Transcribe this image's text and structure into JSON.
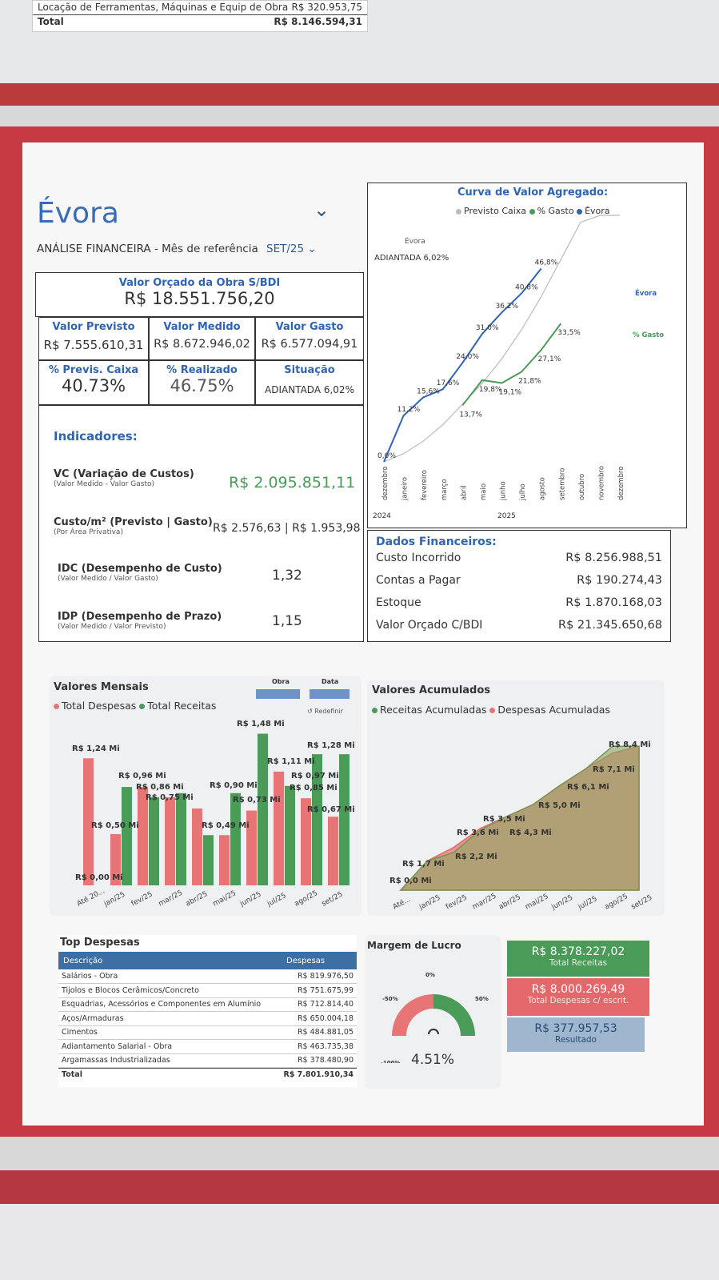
{
  "top": {
    "row1_label": "Locação de Ferramentas, Máquinas e Equip de Obra",
    "row1_value": "R$ 320.953,75",
    "total_label": "Total",
    "total_value": "R$ 8.146.594,31"
  },
  "header": {
    "title": "Évora",
    "subtitle": "ANÁLISE FINANCEIRA - Mês de referência",
    "month": "SET/25"
  },
  "budget": {
    "label": "Valor Orçado da Obra S/BDI",
    "value": "R$ 18.551.756,20"
  },
  "kpis": {
    "previsto_label": "Valor Previsto",
    "previsto": "R$ 7.555.610,31",
    "medido_label": "Valor Medido",
    "medido": "R$ 8.672.946,02",
    "gasto_label": "Valor Gasto",
    "gasto": "R$ 6.577.094,91",
    "caixa_label": "% Previs. Caixa",
    "caixa": "40.73%",
    "realizado_label": "% Realizado",
    "realizado": "46.75%",
    "situacao_label": "Situação",
    "situacao": "ADIANTADA 6,02%"
  },
  "indicadores": {
    "title": "Indicadores:",
    "vc_label": "VC (Variação de Custos)",
    "vc_sub": "(Valor Medido - Valor Gasto)",
    "vc": "R$ 2.095.851,11",
    "custo_label": "Custo/m² (Previsto | Gasto)",
    "custo_sub": "(Por Área Privativa)",
    "custo_prev": "R$ 2.576,63",
    "custo_gasto": "R$ 1.953,98",
    "idc_label": "IDC (Desempenho de Custo)",
    "idc_sub": "(Valor Medido / Valor Gasto)",
    "idc": "1,32",
    "idp_label": "IDP (Desempenho de Prazo)",
    "idp_sub": "(Valor Medido / Valor Previsto)",
    "idp": "1,15"
  },
  "curva": {
    "title": "Curva de Valor Agregado:",
    "legend": [
      "Previsto Caixa",
      "% Gasto",
      "Évora"
    ],
    "status_name": "Évora",
    "status": "ADIANTADA 6,02%",
    "label_evora": "Évora",
    "label_gasto": "% Gasto",
    "year1": "2024",
    "year2": "2025"
  },
  "financeiros": {
    "title": "Dados Financeiros:",
    "rows": [
      {
        "label": "Custo Incorrido",
        "value": "R$ 8.256.988,51"
      },
      {
        "label": "Contas a Pagar",
        "value": "R$ 190.274,43"
      },
      {
        "label": "Estoque",
        "value": "R$ 1.870.168,03"
      },
      {
        "label": "Valor Orçado C/BDI",
        "value": "R$ 21.345.650,68"
      }
    ]
  },
  "mensais": {
    "title": "Valores Mensais",
    "legend": [
      "Total Despesas",
      "Total Receitas"
    ],
    "filter_obra": "Obra",
    "filter_data": "Data",
    "redefinir": "Redefinir"
  },
  "acumulados": {
    "title": "Valores Acumulados",
    "legend": [
      "Receitas Acumuladas",
      "Despesas Acumuladas"
    ]
  },
  "despesas": {
    "title": "Top Despesas",
    "col1": "Descrição",
    "col2": "Despesas",
    "rows": [
      {
        "d": "Salários - Obra",
        "v": "R$ 819.976,50"
      },
      {
        "d": "Tijolos e Blocos Cerâmicos/Concreto",
        "v": "R$ 751.675,99"
      },
      {
        "d": "Esquadrias, Acessórios e Componentes em Alumínio",
        "v": "R$ 712.814,40"
      },
      {
        "d": "Aços/Armaduras",
        "v": "R$ 650.004,18"
      },
      {
        "d": "Cimentos",
        "v": "R$ 484.881,05"
      },
      {
        "d": "Adiantamento Salarial - Obra",
        "v": "R$ 463.735,38"
      },
      {
        "d": "Argamassas Industrializadas",
        "v": "R$ 378.480,90"
      }
    ],
    "total_label": "Total",
    "total": "R$ 7.801.910,34"
  },
  "margem": {
    "title": "Margem de Lucro",
    "value": "4.51%",
    "ticks": [
      "-100%",
      "-50%",
      "0%",
      "50%",
      "100%"
    ]
  },
  "cards": {
    "receitas": "R$ 8.378.227,02",
    "receitas_label": "Total Receitas",
    "despesas": "R$ 8.000.269,49",
    "despesas_label": "Total Despesas c/ escrit.",
    "resultado": "R$ 377.957,53",
    "resultado_label": "Resultado"
  },
  "colors": {
    "brand_red": "#c73a44",
    "blue": "#2e64b0",
    "green": "#4a9a58",
    "red_bar": "#e87476"
  },
  "chart_data": [
    {
      "type": "line",
      "title": "Curva de Valor Agregado:",
      "x": [
        "dezembro",
        "janeiro",
        "fevereiro",
        "março",
        "abril",
        "maio",
        "junho",
        "julho",
        "agosto",
        "setembro",
        "outubro",
        "novembro",
        "dezembro"
      ],
      "series": [
        {
          "name": "Évora",
          "values": [
            0.0,
            11.2,
            15.6,
            17.6,
            24.0,
            31.0,
            36.2,
            40.8,
            46.8,
            null,
            null,
            null,
            null
          ]
        },
        {
          "name": "% Gasto",
          "values": [
            null,
            null,
            null,
            null,
            13.7,
            19.8,
            19.1,
            21.8,
            27.1,
            33.5,
            null,
            null,
            null
          ]
        },
        {
          "name": "Previsto Caixa",
          "values": [
            0,
            2,
            5,
            9,
            14,
            19,
            25,
            32,
            40,
            49,
            58,
            68,
            78
          ]
        }
      ],
      "labels": [
        "0,0%",
        "11,2%",
        "15,6%",
        "17,6%",
        "24,0%",
        "31,0%",
        "36,2%",
        "40,8%",
        "46,8%",
        "13,7%",
        "19,8%",
        "19,1%",
        "21,8%",
        "27,1%",
        "33,5%"
      ]
    },
    {
      "type": "bar",
      "title": "Valores Mensais",
      "categories": [
        "Até 20...",
        "jan/25",
        "fev/25",
        "mar/25",
        "abr/25",
        "mai/25",
        "jun/25",
        "jul/25",
        "ago/25",
        "set/25"
      ],
      "series": [
        {
          "name": "Total Despesas",
          "values": [
            1.24,
            0.5,
            0.96,
            0.86,
            0.75,
            0.49,
            0.73,
            1.11,
            0.85,
            0.67
          ]
        },
        {
          "name": "Total Receitas",
          "values": [
            0.0,
            0.96,
            0.86,
            0.9,
            0.49,
            0.9,
            1.48,
            0.97,
            1.28,
            1.28
          ]
        }
      ],
      "labels": [
        "R$ 1,24 Mi",
        "R$ 0,50 Mi",
        "R$ 0,96 Mi",
        "R$ 0,86 Mi",
        "R$ 0,75 Mi",
        "R$ 0,90 Mi",
        "R$ 0,49 Mi",
        "R$ 0,73 Mi",
        "R$ 1,48 Mi",
        "R$ 1,11 Mi",
        "R$ 0,97 Mi",
        "R$ 0,85 Mi",
        "R$ 1,28 Mi",
        "R$ 0,67 Mi",
        "R$ 0,00 Mi"
      ]
    },
    {
      "type": "area",
      "title": "Valores Acumulados",
      "categories": [
        "Até...",
        "jan/25",
        "fev/25",
        "mar/25",
        "abr/25",
        "mai/25",
        "jun/25",
        "jul/25",
        "ago/25",
        "set/25"
      ],
      "series": [
        {
          "name": "Receitas Acumuladas",
          "values": [
            0.0,
            1.7,
            2.2,
            3.5,
            4.3,
            5.0,
            6.1,
            7.1,
            8.4,
            8.4
          ]
        },
        {
          "name": "Despesas Acumuladas",
          "values": [
            0.0,
            1.7,
            2.5,
            3.6,
            4.3,
            5.0,
            6.1,
            7.1,
            8.0,
            8.4
          ]
        }
      ],
      "labels": [
        "R$ 0,0 Mi",
        "R$ 1,7 Mi",
        "R$ 2,2 Mi",
        "R$ 3,6 Mi",
        "R$ 3,5 Mi",
        "R$ 4,3 Mi",
        "R$ 5,0 Mi",
        "R$ 6,1 Mi",
        "R$ 7,1 Mi",
        "R$ 8,4 Mi"
      ]
    }
  ]
}
